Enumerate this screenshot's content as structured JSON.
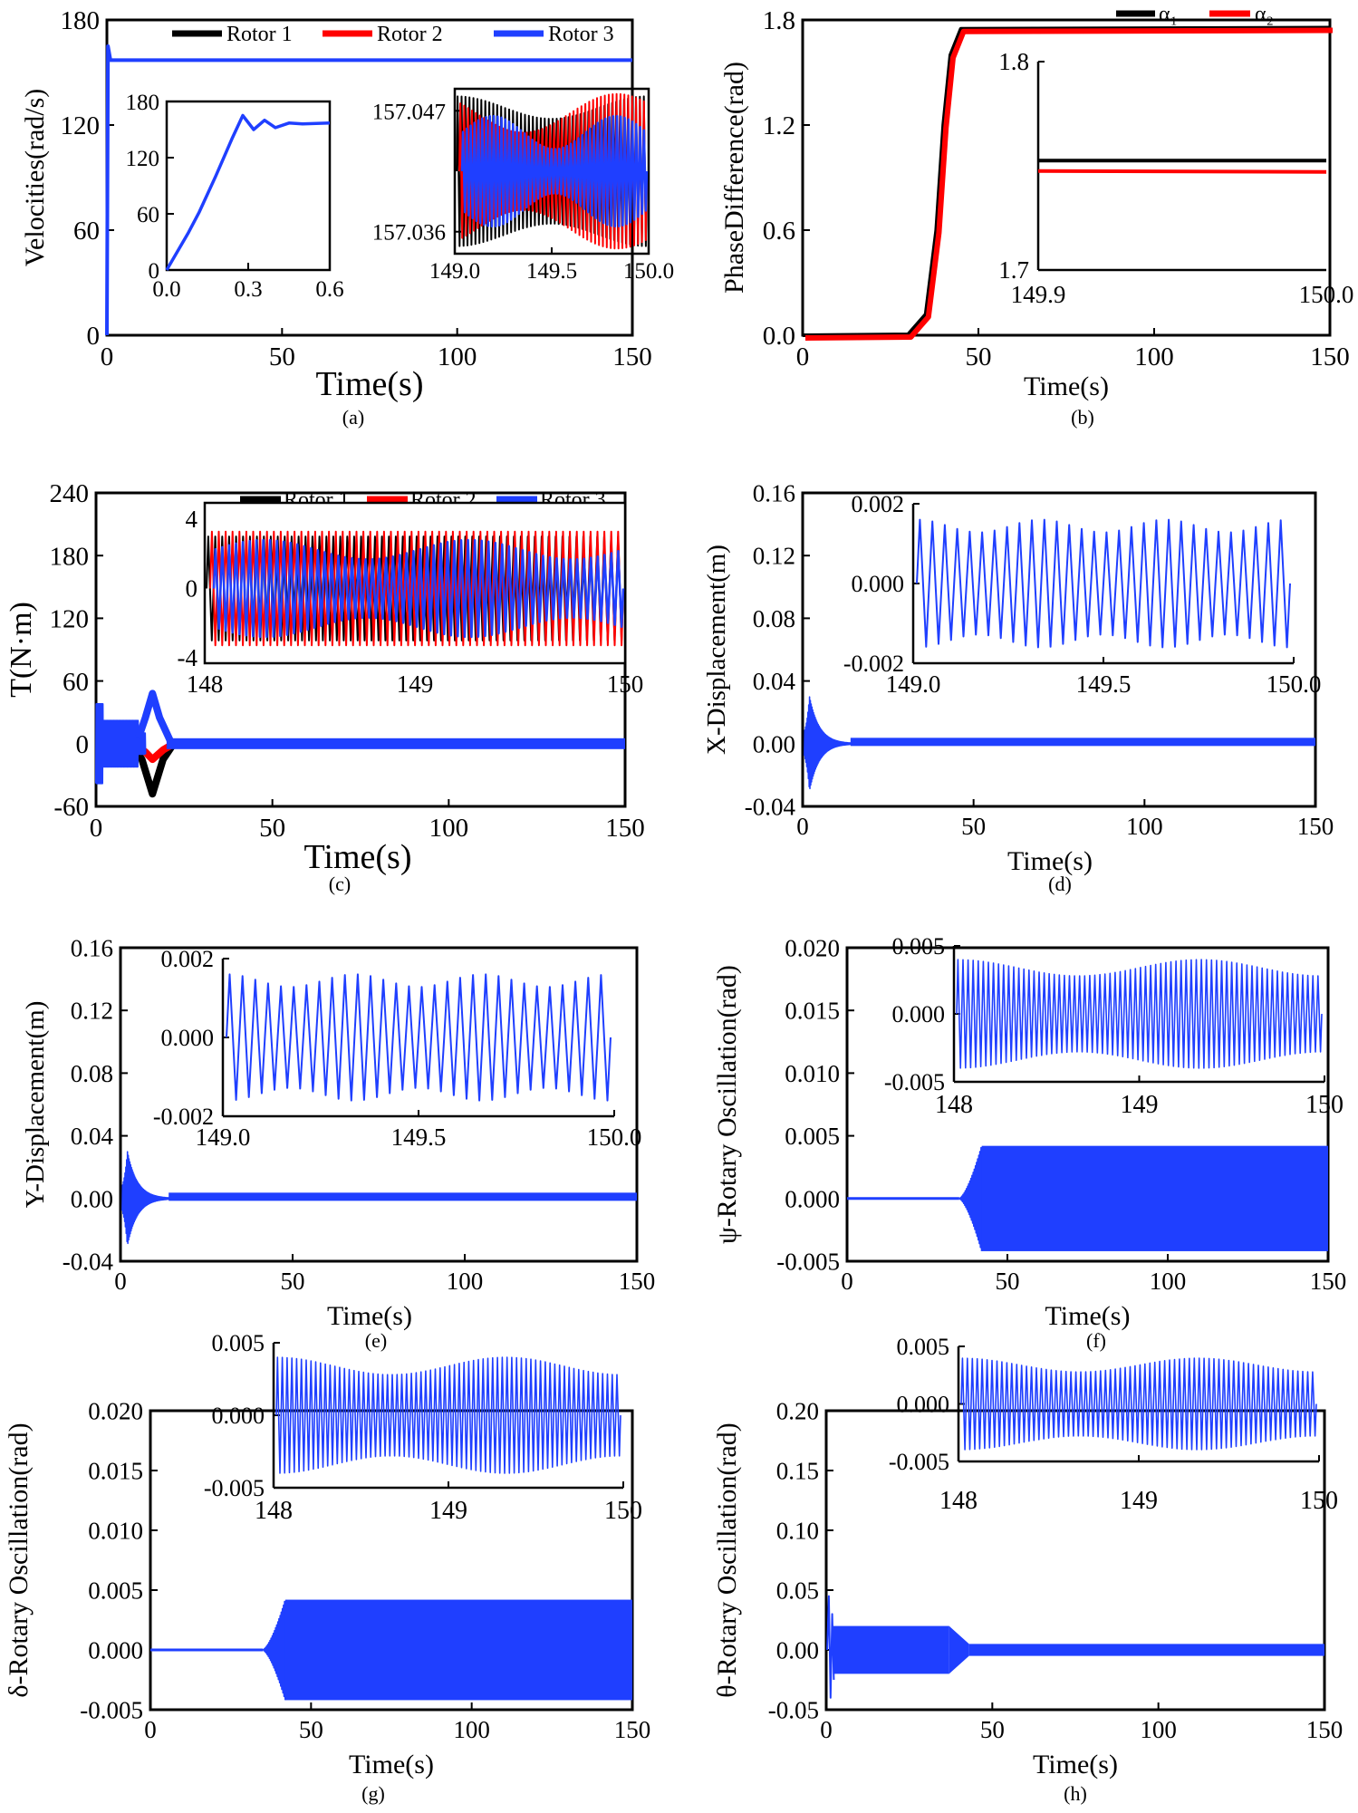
{
  "figure": {
    "panels": [
      "a",
      "b",
      "c",
      "d",
      "e",
      "f",
      "g",
      "h"
    ]
  },
  "colors": {
    "rotor1": "#000000",
    "rotor2": "#ff0000",
    "rotor3": "#1f3fff",
    "alpha1": "#000000",
    "alpha2": "#ff0000",
    "axis": "#000000"
  },
  "chart_data": [
    {
      "id": "a",
      "caption": "(a)",
      "type": "line",
      "xlabel": "Time(s)",
      "ylabel": "Velocities(rad/s)",
      "xlim": [
        0,
        150
      ],
      "ylim": [
        0,
        180
      ],
      "xticks": [
        "0",
        "50",
        "100",
        "150"
      ],
      "yticks": [
        "0",
        "60",
        "120",
        "180"
      ],
      "legend": [
        "Rotor 1",
        "Rotor 2",
        "Rotor 3"
      ],
      "series": [
        {
          "name": "Rotor 3",
          "x": [
            0,
            0.3,
            1,
            150
          ],
          "y": [
            0,
            165,
            157.04,
            157.04
          ]
        }
      ],
      "inset1": {
        "xlim": [
          0,
          0.6
        ],
        "ylim": [
          0,
          180
        ],
        "xticks": [
          "0.0",
          "0.3",
          "0.6"
        ],
        "yticks": [
          "0",
          "60",
          "120",
          "180"
        ],
        "x": [
          0,
          0.03,
          0.08,
          0.12,
          0.18,
          0.24,
          0.28,
          0.32,
          0.36,
          0.4,
          0.45,
          0.5,
          0.6
        ],
        "y": [
          0,
          15,
          40,
          62,
          100,
          140,
          165,
          150,
          160,
          152,
          157,
          156,
          157
        ]
      },
      "inset2": {
        "xlim": [
          149.0,
          150.0
        ],
        "ylim": [
          157.034,
          157.049
        ],
        "xticks": [
          "149.0",
          "149.5",
          "150.0"
        ],
        "yticks": [
          "157.036",
          "157.047"
        ]
      }
    },
    {
      "id": "b",
      "caption": "(b)",
      "type": "line",
      "xlabel": "Time(s)",
      "ylabel": "PhaseDifference(rad)",
      "xlim": [
        0,
        150
      ],
      "ylim": [
        0,
        1.8
      ],
      "xticks": [
        "0",
        "50",
        "100",
        "150"
      ],
      "yticks": [
        "0.0",
        "0.6",
        "1.2",
        "1.8"
      ],
      "legend": [
        "α₁",
        "α₂"
      ],
      "series": [
        {
          "name": "α₁",
          "x": [
            0,
            30,
            35,
            38,
            40,
            42,
            45,
            150
          ],
          "y": [
            0,
            0.005,
            0.12,
            0.6,
            1.2,
            1.6,
            1.75,
            1.756
          ]
        },
        {
          "name": "α₂",
          "x": [
            0,
            30,
            35,
            38,
            40,
            42,
            45,
            150
          ],
          "y": [
            0,
            0.005,
            0.12,
            0.6,
            1.2,
            1.6,
            1.75,
            1.756
          ]
        }
      ],
      "inset1": {
        "xlim": [
          149.9,
          150.0
        ],
        "ylim": [
          1.7,
          1.8
        ],
        "xticks": [
          "149.9",
          "150.0"
        ],
        "yticks": [
          "1.7",
          "1.8"
        ],
        "series": [
          {
            "name": "α₁",
            "value": 1.7525
          },
          {
            "name": "α₂",
            "value": 1.7475
          }
        ]
      }
    },
    {
      "id": "c",
      "caption": "(c)",
      "type": "line",
      "xlabel": "Time(s)",
      "ylabel": "T(N·m)",
      "xlim": [
        0,
        150
      ],
      "ylim": [
        -60,
        240
      ],
      "xticks": [
        "0",
        "50",
        "100",
        "150"
      ],
      "yticks": [
        "-60",
        "0",
        "60",
        "120",
        "180",
        "240"
      ],
      "legend": [
        "Rotor 1",
        "Rotor 2",
        "Rotor 3"
      ],
      "series": [
        {
          "name": "Rotor 1",
          "peak_time": 16,
          "peak": -48
        },
        {
          "name": "Rotor 2",
          "peak_time": 16,
          "peak": -15
        },
        {
          "name": "Rotor 3",
          "peak_time": 16,
          "peak": 48
        }
      ],
      "inset1": {
        "xlim": [
          148,
          150
        ],
        "ylim": [
          -4,
          4
        ],
        "xticks": [
          "148",
          "149",
          "150"
        ],
        "yticks": [
          "-4",
          "0",
          "4"
        ],
        "amplitude": 3
      }
    },
    {
      "id": "d",
      "caption": "(d)",
      "type": "line",
      "xlabel": "Time(s)",
      "ylabel": "X-Displacement(m)",
      "xlim": [
        0,
        150
      ],
      "ylim": [
        -0.04,
        0.16
      ],
      "xticks": [
        "0",
        "50",
        "100",
        "150"
      ],
      "yticks": [
        "-0.04",
        "0.00",
        "0.04",
        "0.08",
        "0.12",
        "0.16"
      ],
      "transient": {
        "peak_time": 2,
        "amplitude": 0.03,
        "steady": 0.002
      },
      "inset1": {
        "xlim": [
          149.0,
          150.0
        ],
        "ylim": [
          -0.002,
          0.002
        ],
        "xticks": [
          "149.0",
          "149.5",
          "150.0"
        ],
        "yticks": [
          "-0.002",
          "0.000",
          "0.002"
        ],
        "amplitude": 0.0016
      }
    },
    {
      "id": "e",
      "caption": "(e)",
      "type": "line",
      "xlabel": "Time(s)",
      "ylabel": "Y-Displacement(m)",
      "xlim": [
        0,
        150
      ],
      "ylim": [
        -0.04,
        0.16
      ],
      "xticks": [
        "0",
        "50",
        "100",
        "150"
      ],
      "yticks": [
        "-0.04",
        "0.00",
        "0.04",
        "0.08",
        "0.12",
        "0.16"
      ],
      "transient": {
        "peak_time": 2,
        "amplitude": 0.03,
        "steady": 0.002
      },
      "inset1": {
        "xlim": [
          149.0,
          150.0
        ],
        "ylim": [
          -0.002,
          0.002
        ],
        "xticks": [
          "149.0",
          "149.5",
          "150.0"
        ],
        "yticks": [
          "-0.002",
          "0.000",
          "0.002"
        ],
        "amplitude": 0.0016
      }
    },
    {
      "id": "f",
      "caption": "(f)",
      "type": "line",
      "xlabel": "Time(s)",
      "ylabel": "ψ-Rotary Oscillation(rad)",
      "xlim": [
        0,
        150
      ],
      "ylim": [
        -0.005,
        0.02
      ],
      "xticks": [
        "0",
        "50",
        "100",
        "150"
      ],
      "yticks": [
        "-0.005",
        "0.000",
        "0.005",
        "0.010",
        "0.015",
        "0.020"
      ],
      "envelope": {
        "start": 35,
        "end": 42,
        "amplitude": 0.0042
      },
      "inset1": {
        "xlim": [
          148,
          150
        ],
        "ylim": [
          -0.005,
          0.005
        ],
        "xticks": [
          "148",
          "149",
          "150"
        ],
        "yticks": [
          "-0.005",
          "0.000",
          "0.005"
        ],
        "amplitude": 0.004
      }
    },
    {
      "id": "g",
      "caption": "(g)",
      "type": "line",
      "xlabel": "Time(s)",
      "ylabel": "δ-Rotary Oscillation(rad)",
      "xlim": [
        0,
        150
      ],
      "ylim": [
        -0.005,
        0.02
      ],
      "xticks": [
        "0",
        "50",
        "100",
        "150"
      ],
      "yticks": [
        "-0.005",
        "0.000",
        "0.005",
        "0.010",
        "0.015",
        "0.020"
      ],
      "envelope": {
        "start": 35,
        "end": 42,
        "amplitude": 0.0042
      },
      "inset1": {
        "xlim": [
          148,
          150
        ],
        "ylim": [
          -0.005,
          0.005
        ],
        "xticks": [
          "148",
          "149",
          "150"
        ],
        "yticks": [
          "-0.005",
          "0.000",
          "0.005"
        ],
        "amplitude": 0.004
      }
    },
    {
      "id": "h",
      "caption": "(h)",
      "type": "line",
      "xlabel": "Time(s)",
      "ylabel": "θ-Rotary Oscillation(rad)",
      "xlim": [
        0,
        150
      ],
      "ylim": [
        -0.05,
        0.2
      ],
      "xticks": [
        "0",
        "50",
        "100",
        "150"
      ],
      "yticks": [
        "-0.05",
        "0.00",
        "0.05",
        "0.10",
        "0.15",
        "0.20"
      ],
      "envelope": {
        "initial": 0.02,
        "drop_start": 37,
        "drop_end": 43,
        "final": 0.005
      },
      "inset1": {
        "xlim": [
          148,
          150
        ],
        "ylim": [
          -0.005,
          0.005
        ],
        "xticks": [
          "148",
          "149",
          "150"
        ],
        "yticks": [
          "-0.005",
          "0.000",
          "0.005"
        ],
        "amplitude": 0.004
      }
    }
  ]
}
